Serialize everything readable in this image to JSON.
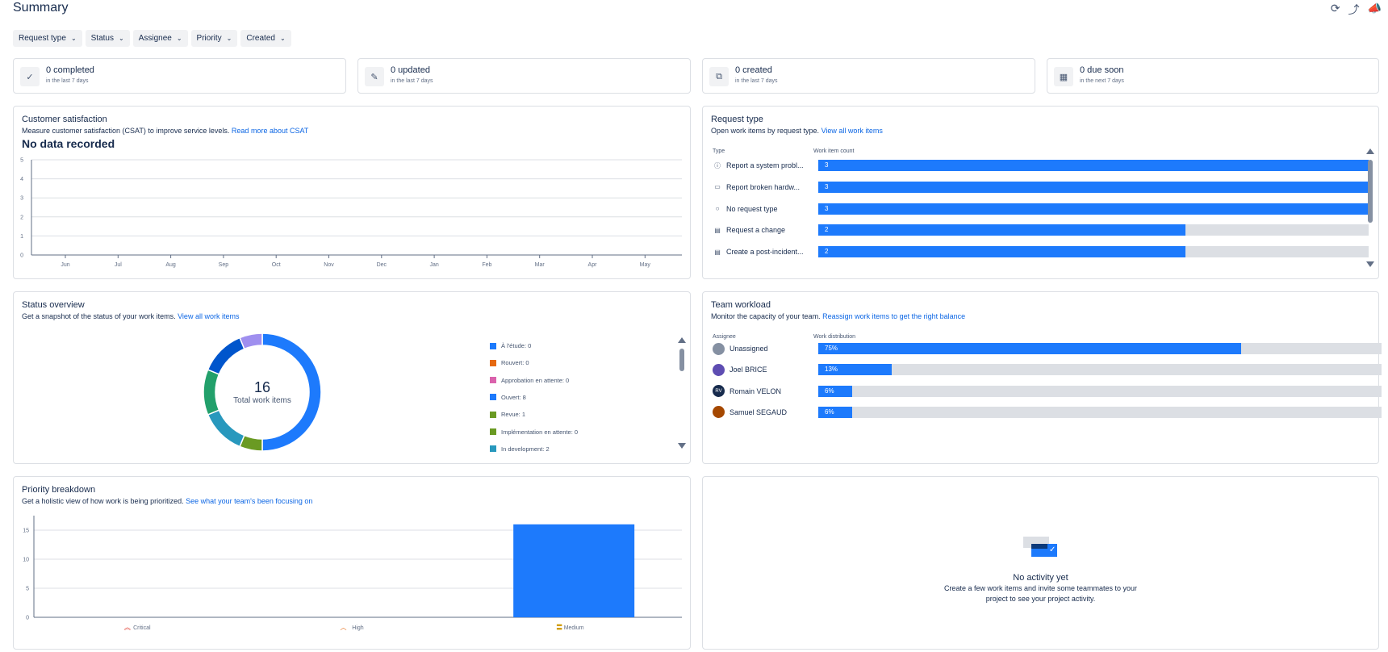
{
  "page": {
    "title": "Summary"
  },
  "filters": [
    "Request type",
    "Status",
    "Assignee",
    "Priority",
    "Created"
  ],
  "stats": [
    {
      "icon": "check-circle-icon",
      "value": "0 completed",
      "period": "in the last 7 days"
    },
    {
      "icon": "edit-icon",
      "value": "0 updated",
      "period": "in the last 7 days"
    },
    {
      "icon": "copy-icon",
      "value": "0 created",
      "period": "in the last 7 days"
    },
    {
      "icon": "calendar-icon",
      "value": "0 due soon",
      "period": "in the next 7 days"
    }
  ],
  "csat": {
    "title": "Customer satisfaction",
    "subtitle": "Measure customer satisfaction (CSAT) to improve service levels. ",
    "link": "Read more about CSAT",
    "no_data": "No data recorded"
  },
  "request_type": {
    "title": "Request type",
    "subtitle": "Open work items by request type. ",
    "link": "View all work items",
    "col_type": "Type",
    "col_count": "Work item count",
    "rows": [
      {
        "icon": "info-icon",
        "label": "Report a system probl...",
        "value": 3,
        "max": 3
      },
      {
        "icon": "monitor-icon",
        "label": "Report broken hardw...",
        "value": 3,
        "max": 3
      },
      {
        "icon": "circle-icon",
        "label": "No request type",
        "value": 3,
        "max": 3
      },
      {
        "icon": "document-icon",
        "label": "Request a change",
        "value": 2,
        "max": 3
      },
      {
        "icon": "document-icon",
        "label": "Create a post-incident...",
        "value": 2,
        "max": 3
      }
    ]
  },
  "status_overview": {
    "title": "Status overview",
    "subtitle": "Get a snapshot of the status of your work items. ",
    "link": "View all work items",
    "total": "16",
    "total_label": "Total work items",
    "legend": [
      {
        "label": "À l'étude: 0",
        "color": "#1d7afc"
      },
      {
        "label": "Rouvert: 0",
        "color": "#e56910"
      },
      {
        "label": "Approbation en attente: 0",
        "color": "#da62ac"
      },
      {
        "label": "Ouvert: 8",
        "color": "#1d7afc"
      },
      {
        "label": "Revue: 1",
        "color": "#6a9a23"
      },
      {
        "label": "Implémentation en attente: 0",
        "color": "#6a9a23"
      },
      {
        "label": "In development: 2",
        "color": "#2898bd"
      }
    ]
  },
  "team_workload": {
    "title": "Team workload",
    "subtitle": "Monitor the capacity of your team. ",
    "link": "Reassign work items to get the right balance",
    "col_assignee": "Assignee",
    "col_dist": "Work distribution",
    "rows": [
      {
        "name": "Unassigned",
        "pct": "75%",
        "value": 0.75,
        "initials": "",
        "avatar_color": "#8590a2"
      },
      {
        "name": "Joel BRICE",
        "pct": "13%",
        "value": 0.13,
        "initials": "",
        "avatar_color": "#5e4db2"
      },
      {
        "name": "Romain VELON",
        "pct": "6%",
        "value": 0.06,
        "initials": "RV",
        "avatar_color": "#172b4d"
      },
      {
        "name": "Samuel SEGAUD",
        "pct": "6%",
        "value": 0.06,
        "initials": "",
        "avatar_color": "#a54800"
      }
    ]
  },
  "priority": {
    "title": "Priority breakdown",
    "subtitle": "Get a holistic view of how work is being prioritized. ",
    "link": "See what your team's been focusing on"
  },
  "activity": {
    "title": "No activity yet",
    "line1": "Create a few work items and invite some teammates to your",
    "line2": "project to see your project activity."
  },
  "chart_data": [
    {
      "type": "line",
      "categories": [
        "Jun",
        "Jul",
        "Aug",
        "Sep",
        "Oct",
        "Nov",
        "Dec",
        "Jan",
        "Feb",
        "Mar",
        "Apr",
        "May"
      ],
      "yticks": [
        0,
        1,
        2,
        3,
        4,
        5
      ],
      "ylim": [
        0,
        5
      ],
      "series": []
    },
    {
      "type": "pie",
      "slices": [
        {
          "value": 8,
          "color": "#1d7afc"
        },
        {
          "value": 1,
          "color": "#6a9a23"
        },
        {
          "value": 2,
          "color": "#2898bd"
        },
        {
          "value": 2,
          "color": "#22a06b"
        },
        {
          "value": 2,
          "color": "#0055cc"
        },
        {
          "value": 1,
          "color": "#9f8fef"
        }
      ]
    },
    {
      "type": "bar",
      "categories": [
        "Critical",
        "High",
        "Medium"
      ],
      "values": [
        0,
        0,
        16
      ],
      "yticks": [
        0,
        5,
        10,
        15
      ],
      "ylim": [
        0,
        17.5
      ],
      "colors": {
        "bar": "#1d7afc"
      }
    }
  ]
}
